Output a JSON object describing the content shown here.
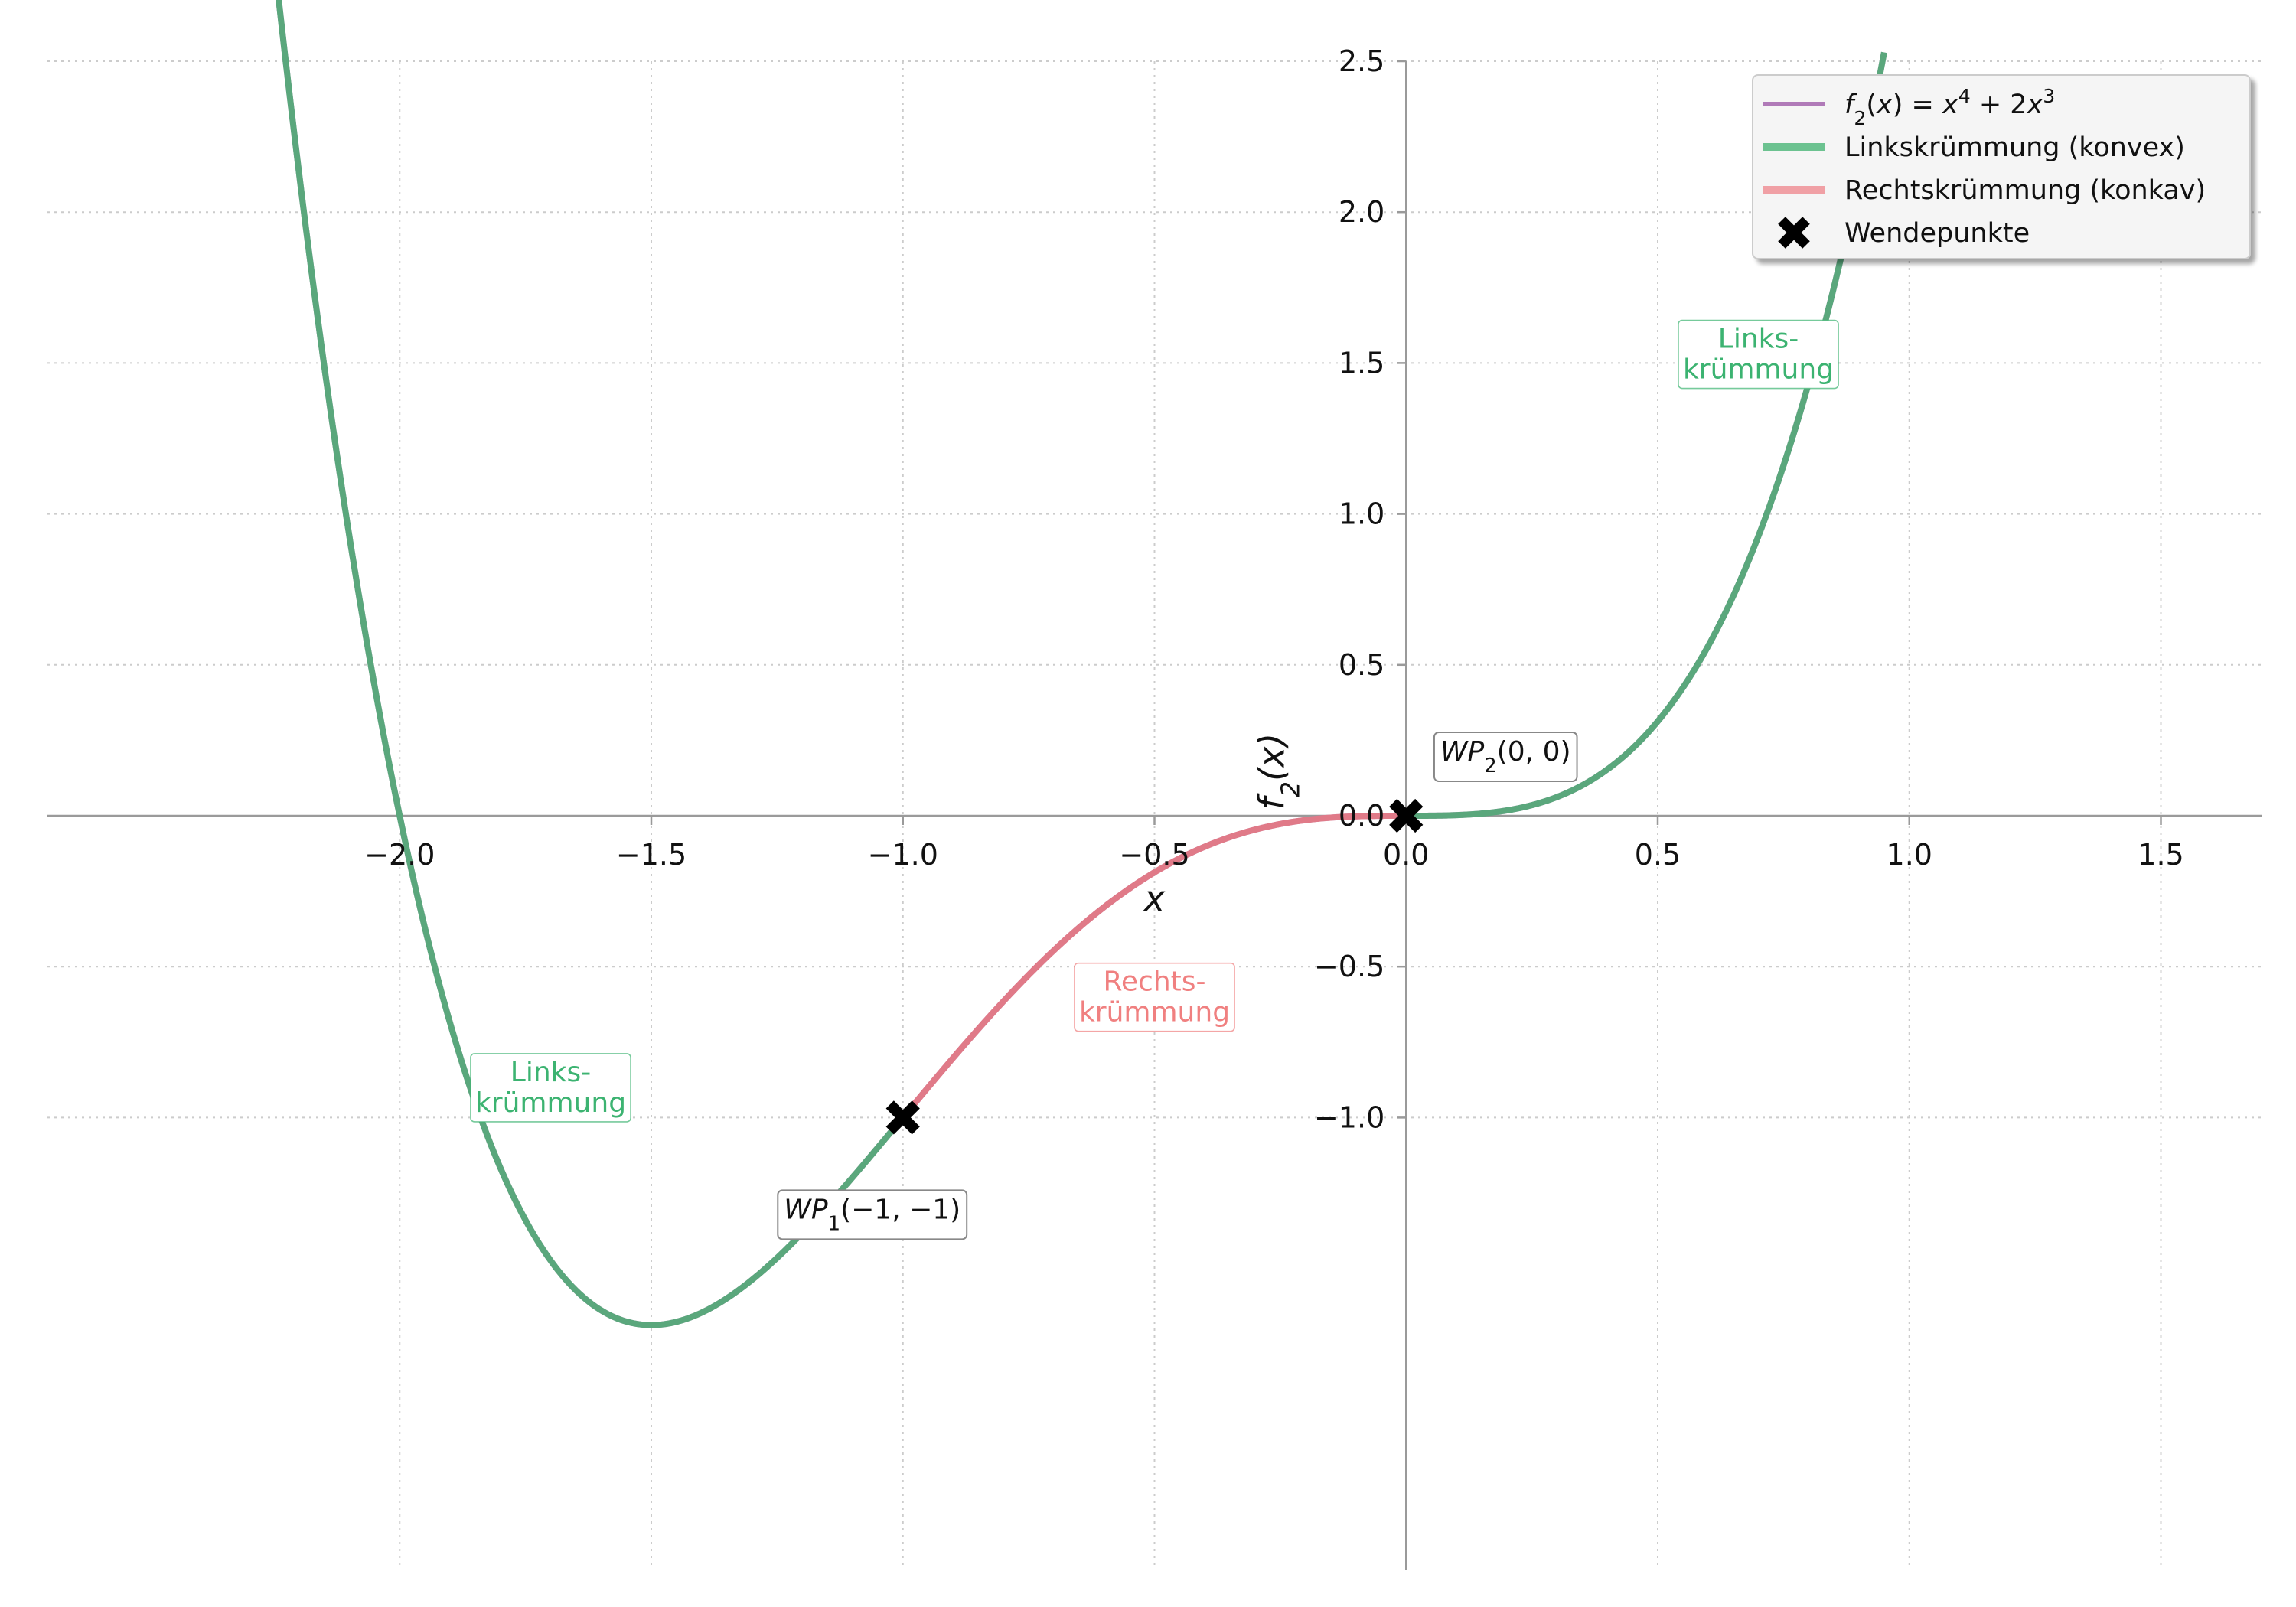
{
  "chart_data": {
    "type": "line",
    "title": "",
    "xlabel": "x",
    "ylabel": "f2(x)",
    "xlim": [
      -2.7,
      1.7
    ],
    "ylim": [
      -2.5,
      2.5
    ],
    "x_ticks": [
      -2.0,
      -1.5,
      -1.0,
      -0.5,
      0.0,
      0.5,
      1.0,
      1.5
    ],
    "x_tick_labels": [
      "−2.0",
      "−1.5",
      "−1.0",
      "−0.5",
      "0.0",
      "0.5",
      "1.0",
      "1.5"
    ],
    "y_ticks": [
      -1.0,
      -0.5,
      0.0,
      0.5,
      1.0,
      1.5,
      2.0,
      2.5
    ],
    "y_tick_labels": [
      "−1.0",
      "−0.5",
      "0.0",
      "0.5",
      "1.0",
      "1.5",
      "2.0",
      "2.5"
    ],
    "grid": true,
    "function": "x^4 + 2x^3",
    "series": [
      {
        "name": "f2(x) = x4 + 2x3",
        "color": "#b07ab8",
        "domain": [
          -2.3,
          0.95
        ]
      },
      {
        "name": "Linkskrümmung (konvex)",
        "color": "#5aa77c",
        "segments": [
          [
            -2.3,
            -1.0
          ],
          [
            0.0,
            0.95
          ]
        ]
      },
      {
        "name": "Rechtskrümmung (konkav)",
        "color": "#e07a88",
        "segments": [
          [
            -1.0,
            0.0
          ]
        ]
      }
    ],
    "points": {
      "name": "Wendepunkte",
      "values": [
        [
          -1,
          -1
        ],
        [
          0,
          0
        ]
      ],
      "labels": [
        "WP1(−1, −1)",
        "WP2(0, 0)"
      ]
    },
    "annotations": [
      {
        "lines": [
          "Links-",
          "krümmung"
        ],
        "x": -1.7,
        "y": -0.9,
        "color": "#3cb371"
      },
      {
        "lines": [
          "Rechts-",
          "krümmung"
        ],
        "x": -0.5,
        "y": -0.6,
        "color": "#f08080"
      },
      {
        "lines": [
          "Links-",
          "krümmung"
        ],
        "x": 0.7,
        "y": 1.53,
        "color": "#3cb371"
      }
    ],
    "legend": {
      "position": "top-right",
      "entries": [
        {
          "label": "f2(x) = x4 + 2x3",
          "kind": "line",
          "color": "#b07ab8"
        },
        {
          "label": "Linkskrümmung (konvex)",
          "kind": "line",
          "color": "#6cc290"
        },
        {
          "label": "Rechtskrümmung (konkav)",
          "kind": "line",
          "color": "#f0a0a5"
        },
        {
          "label": "Wendepunkte",
          "kind": "marker",
          "color": "#000000"
        }
      ]
    }
  }
}
